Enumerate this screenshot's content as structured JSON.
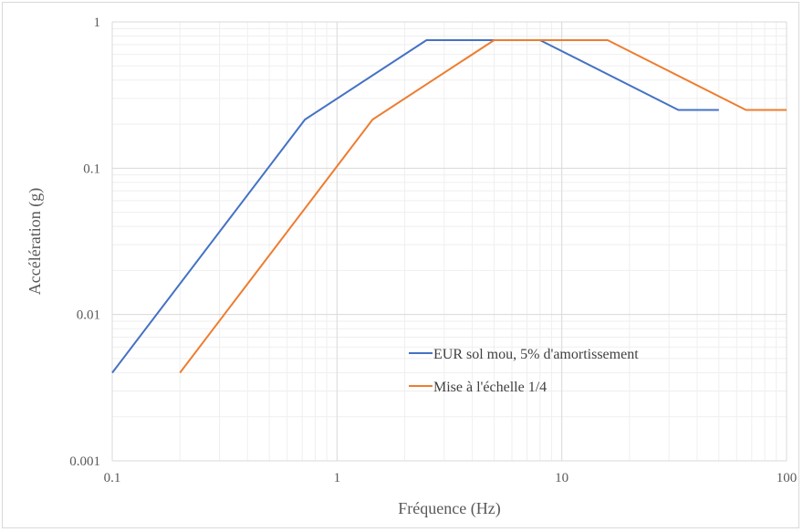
{
  "chart_data": {
    "type": "line",
    "title": "",
    "xlabel": "Fréquence (Hz)",
    "ylabel": "Accélération (g)",
    "x_scale": "log",
    "y_scale": "log",
    "xlim": [
      0.1,
      100
    ],
    "ylim": [
      0.001,
      1
    ],
    "x_ticks": [
      "0.1",
      "1",
      "10",
      "100"
    ],
    "y_ticks": [
      "0.001",
      "0.01",
      "0.1",
      "1"
    ],
    "grid": true,
    "legend_position": "lower-right",
    "series": [
      {
        "name": "EUR sol mou, 5% d'amortissement",
        "color": "#4472C4",
        "points": [
          [
            0.1,
            0.004
          ],
          [
            0.72,
            0.215
          ],
          [
            2.5,
            0.75
          ],
          [
            8,
            0.75
          ],
          [
            33,
            0.25
          ],
          [
            50,
            0.25
          ]
        ]
      },
      {
        "name": "Mise à l'échelle 1/4",
        "color": "#ED7D31",
        "points": [
          [
            0.2,
            0.004
          ],
          [
            1.44,
            0.215
          ],
          [
            5,
            0.75
          ],
          [
            16,
            0.75
          ],
          [
            66,
            0.25
          ],
          [
            100,
            0.25
          ]
        ]
      }
    ]
  }
}
